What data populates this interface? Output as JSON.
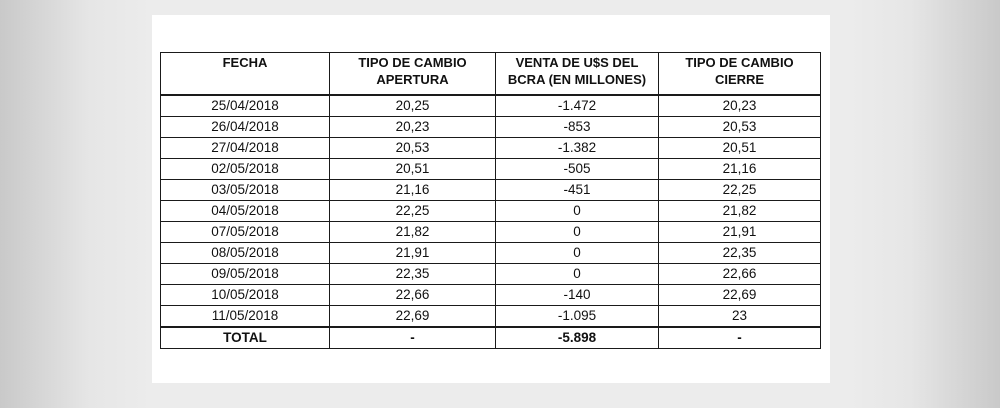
{
  "table": {
    "headers": [
      "FECHA",
      "TIPO DE CAMBIO APERTURA",
      "VENTA DE U$S DEL BCRA (EN MILLONES)",
      "TIPO DE CAMBIO CIERRE"
    ],
    "rows": [
      [
        "25/04/2018",
        "20,25",
        "-1.472",
        "20,23"
      ],
      [
        "26/04/2018",
        "20,23",
        "-853",
        "20,53"
      ],
      [
        "27/04/2018",
        "20,53",
        "-1.382",
        "20,51"
      ],
      [
        "02/05/2018",
        "20,51",
        "-505",
        "21,16"
      ],
      [
        "03/05/2018",
        "21,16",
        "-451",
        "22,25"
      ],
      [
        "04/05/2018",
        "22,25",
        "0",
        "21,82"
      ],
      [
        "07/05/2018",
        "21,82",
        "0",
        "21,91"
      ],
      [
        "08/05/2018",
        "21,91",
        "0",
        "22,35"
      ],
      [
        "09/05/2018",
        "22,35",
        "0",
        "22,66"
      ],
      [
        "10/05/2018",
        "22,66",
        "-140",
        "22,69"
      ],
      [
        "11/05/2018",
        "22,69",
        "-1.095",
        "23"
      ]
    ],
    "total": [
      "TOTAL",
      "-",
      "-5.898",
      "-"
    ]
  }
}
